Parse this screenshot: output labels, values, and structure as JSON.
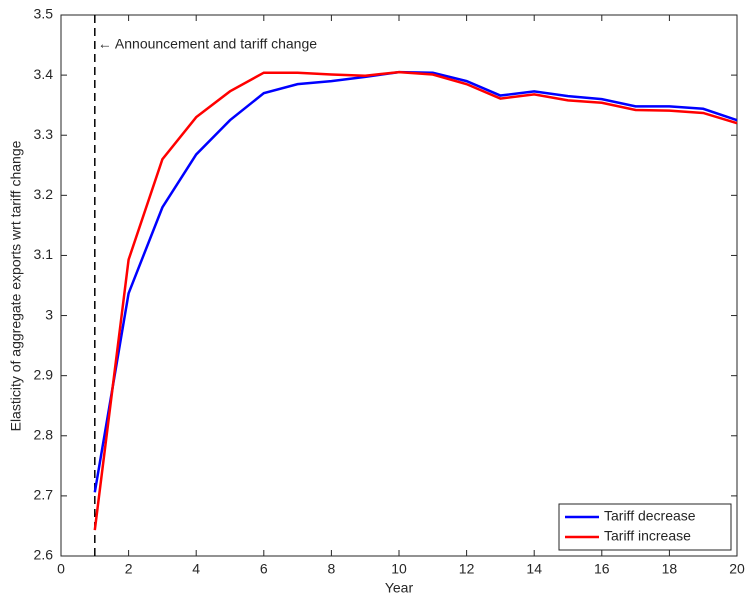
{
  "chart_data": {
    "type": "line",
    "xlabel": "Year",
    "ylabel": "Elasticity of aggregate exports wrt tariff change",
    "x": [
      1,
      2,
      3,
      4,
      5,
      6,
      7,
      8,
      9,
      10,
      11,
      12,
      13,
      14,
      15,
      16,
      17,
      18,
      19,
      20
    ],
    "series": [
      {
        "name": "Tariff decrease",
        "color": "#0000ff",
        "values": [
          2.706,
          3.037,
          3.18,
          3.268,
          3.325,
          3.37,
          3.385,
          3.39,
          3.397,
          3.405,
          3.404,
          3.39,
          3.366,
          3.373,
          3.365,
          3.36,
          3.348,
          3.348,
          3.344,
          3.325
        ]
      },
      {
        "name": "Tariff increase",
        "color": "#ff0000",
        "values": [
          2.643,
          3.093,
          3.26,
          3.33,
          3.373,
          3.404,
          3.404,
          3.401,
          3.399,
          3.405,
          3.401,
          3.385,
          3.361,
          3.368,
          3.358,
          3.354,
          3.342,
          3.341,
          3.337,
          3.32
        ]
      }
    ],
    "annotation": {
      "text": "← Announcement and tariff change",
      "x": 1
    },
    "xlim": [
      0,
      20
    ],
    "xticks": [
      0,
      2,
      4,
      6,
      8,
      10,
      12,
      14,
      16,
      18,
      20
    ],
    "ylim": [
      2.6,
      3.5
    ],
    "yticks": [
      2.6,
      2.7,
      2.8,
      2.9,
      3,
      3.1,
      3.2,
      3.3,
      3.4,
      3.5
    ],
    "grid": false,
    "legend": "lower right"
  }
}
